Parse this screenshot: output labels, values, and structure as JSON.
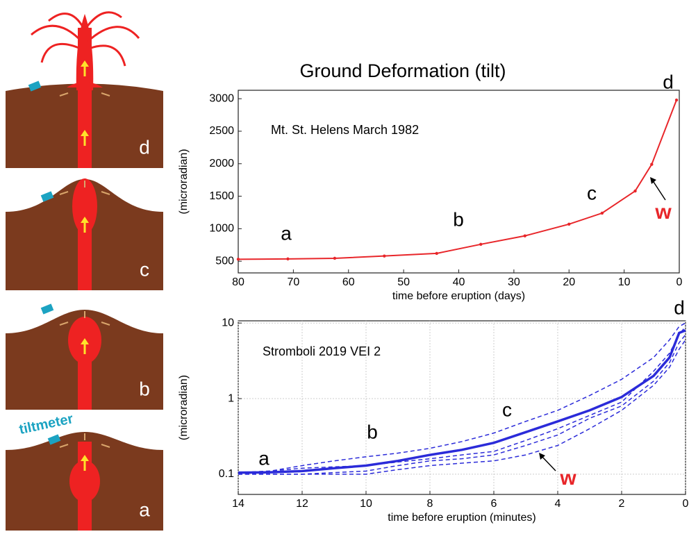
{
  "diagram": {
    "panel_labels": [
      "d",
      "c",
      "b",
      "a"
    ],
    "tiltmeter": "tiltmeter"
  },
  "chart_data": [
    {
      "type": "line",
      "title": "Ground Deformation (tilt)",
      "subtitle": "Mt. St. Helens March 1982",
      "x_label": "time before eruption (days)",
      "y_label": "(microradian)",
      "x": [
        80,
        71,
        62.5,
        53.5,
        44,
        36,
        28,
        20,
        14,
        8,
        5,
        0.5
      ],
      "values": [
        530,
        535,
        545,
        580,
        620,
        760,
        890,
        1070,
        1240,
        1580,
        1990,
        2980
      ],
      "color": "#e8262a",
      "markers": true,
      "xlim": [
        80,
        0
      ],
      "xticks": [
        80,
        70,
        60,
        50,
        40,
        30,
        20,
        10,
        0
      ],
      "ylim": [
        320,
        3130
      ],
      "yticks": [
        500,
        1000,
        1500,
        2000,
        2500,
        3000
      ],
      "grid": false,
      "annotations": [
        "a",
        "b",
        "c",
        "d",
        "w"
      ]
    },
    {
      "type": "line",
      "subtitle": "Stromboli 2019 VEI 2",
      "x_label": "time before eruption (minutes)",
      "y_label": "(microradian)",
      "x": [
        14,
        13,
        12,
        11,
        10,
        9,
        8,
        7,
        6,
        5,
        4,
        3,
        2,
        1,
        0.5,
        0.2,
        0
      ],
      "series": [
        {
          "color": "#2b2bd9",
          "style": "solid",
          "values": [
            0.105,
            0.106,
            0.11,
            0.12,
            0.13,
            0.15,
            0.18,
            0.21,
            0.26,
            0.36,
            0.5,
            0.7,
            1.05,
            2,
            3.5,
            7.4,
            8
          ]
        },
        {
          "color": "#2b2bd9",
          "style": "dashed",
          "values": [
            0.105,
            0.11,
            0.13,
            0.15,
            0.17,
            0.19,
            0.22,
            0.27,
            0.35,
            0.5,
            0.7,
            1.1,
            1.8,
            3.5,
            6,
            9,
            10
          ]
        },
        {
          "color": "#2b2bd9",
          "style": "dashed",
          "values": [
            0.105,
            0.11,
            0.12,
            0.125,
            0.13,
            0.145,
            0.16,
            0.18,
            0.2,
            0.28,
            0.4,
            0.6,
            0.9,
            2.3,
            4,
            7,
            9
          ]
        },
        {
          "color": "#2b2bd9",
          "style": "dashed",
          "values": [
            0.1,
            0.1,
            0.1,
            0.105,
            0.11,
            0.13,
            0.15,
            0.16,
            0.18,
            0.24,
            0.33,
            0.55,
            0.8,
            1.7,
            3,
            5.5,
            7
          ]
        },
        {
          "color": "#2b2bd9",
          "style": "dashed",
          "values": [
            0.1,
            0.1,
            0.1,
            0.1,
            0.1,
            0.115,
            0.13,
            0.14,
            0.15,
            0.18,
            0.24,
            0.4,
            0.7,
            1.5,
            2.6,
            4.5,
            6
          ]
        }
      ],
      "xlim": [
        14,
        0
      ],
      "xticks": [
        14,
        12,
        10,
        8,
        6,
        4,
        2,
        0
      ],
      "ylim": [
        0.054,
        10.7
      ],
      "yticks": [
        0.1,
        1,
        10
      ],
      "log_y": true,
      "grid": true,
      "annotations": [
        "a",
        "b",
        "c",
        "d",
        "w"
      ]
    }
  ]
}
